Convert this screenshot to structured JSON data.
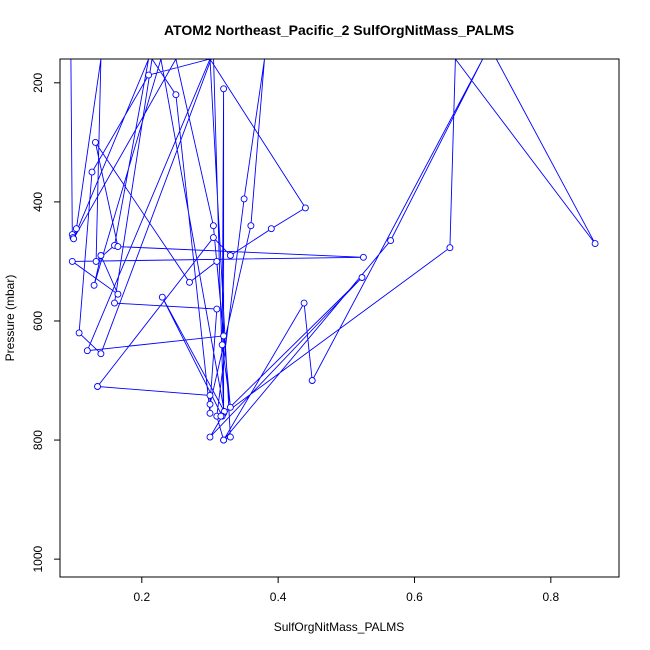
{
  "chart_data": {
    "type": "line",
    "title": "ATOM2 Northeast_Pacific_2 SulfOrgNitMass_PALMS",
    "xlabel": "SulfOrgNitMass_PALMS",
    "ylabel": "Pressure (mbar)",
    "xlim": [
      0.08,
      0.9
    ],
    "ylim": [
      1030,
      160
    ],
    "y_reversed": true,
    "x_ticks": [
      0.2,
      0.4,
      0.6,
      0.8
    ],
    "x_tick_labels": [
      "0.2",
      "0.4",
      "0.6",
      "0.8"
    ],
    "y_ticks": [
      200,
      400,
      600,
      800,
      1000
    ],
    "y_tick_labels": [
      "200",
      "400",
      "600",
      "800",
      "1000"
    ],
    "grid": false,
    "series_color": "#0000ff",
    "series": [
      {
        "x": [
          0.096,
          0.098,
          0.099,
          0.104,
          0.14,
          0.133,
          0.16,
          0.21,
          0.1,
          0.25,
          0.305,
          0.32,
          0.12,
          0.3,
          0.33,
          0.32,
          0.565,
          0.7,
          0.45,
          0.438,
          0.32,
          0.31,
          0.35,
          0.38,
          0.36,
          0.3,
          0.31,
          0.16,
          0.215,
          0.25,
          0.3,
          0.3,
          0.135,
          0.305,
          0.33,
          0.39,
          0.44,
          0.3,
          0.21,
          0.127,
          0.108,
          0.14,
          0.305,
          0.32,
          0.32,
          0.318,
          0.33,
          0.31,
          0.27,
          0.132,
          0.165,
          0.525,
          0.098,
          0.165,
          0.14,
          0.13,
          0.228,
          0.321,
          0.23,
          0.318,
          0.3,
          0.523,
          0.316,
          0.652,
          0.66,
          0.865,
          0.72,
          0.27
        ],
        "y": [
          160,
          455,
          460,
          445,
          160,
          500,
          473,
          160,
          462,
          160,
          440,
          625,
          650,
          160,
          795,
          800,
          465,
          160,
          700,
          570,
          800,
          760,
          395,
          160,
          440,
          740,
          580,
          570,
          160,
          220,
          755,
          725,
          710,
          460,
          490,
          445,
          410,
          160,
          187,
          350,
          620,
          655,
          150,
          755,
          210,
          640,
          745,
          500,
          535,
          300,
          475,
          493,
          500,
          555,
          490,
          540,
          160,
          752,
          560,
          760,
          795,
          527,
          760,
          477,
          160,
          470,
          160,
          160
        ]
      }
    ]
  }
}
